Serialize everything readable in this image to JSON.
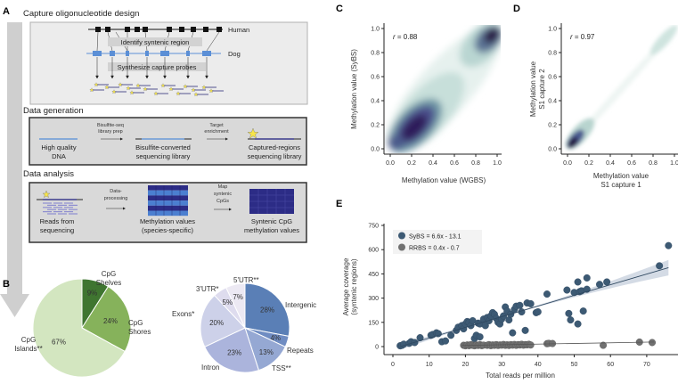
{
  "panel_labels": {
    "a": "A",
    "b": "B",
    "c": "C",
    "d": "D",
    "e": "E"
  },
  "panel_a": {
    "section1": {
      "title": "Capture oligonucleotide design",
      "human": "Human",
      "dog": "Dog",
      "step1": "Identify syntenic region",
      "step2": "Synthesize capture probes"
    },
    "section2": {
      "title": "Data generation",
      "item1": [
        "High quality",
        "DNA"
      ],
      "arrow1": [
        "Bisulfite-seq",
        "library prep"
      ],
      "item2": [
        "Bisulfite-converted",
        "sequencing library"
      ],
      "arrow2": [
        "Target",
        "enrichment"
      ],
      "item3": [
        "Captured-regions",
        "sequencing library"
      ]
    },
    "section3": {
      "title": "Data analysis",
      "item1": [
        "Reads from",
        "sequencing"
      ],
      "arrow1": [
        "Data-",
        "processing"
      ],
      "item2": [
        "Methylation values",
        "(species-specific)"
      ],
      "arrow2": [
        "Map",
        "syntenic",
        "CpGs"
      ],
      "item3": [
        "Syntenic CpG",
        "methylation values"
      ]
    }
  },
  "chart_data": [
    {
      "id": "B-left",
      "type": "pie",
      "slices": [
        {
          "label": "CpG Shelves",
          "label_lines": [
            "CpG",
            "Shelves"
          ],
          "value": 9,
          "text": "9%",
          "color": "#3f7530"
        },
        {
          "label": "CpG Shores",
          "label_lines": [
            "CpG",
            "Shores"
          ],
          "value": 24,
          "text": "24%",
          "color": "#86b25b"
        },
        {
          "label": "CpG Islands**",
          "label_lines": [
            "CpG",
            "Islands**"
          ],
          "value": 67,
          "text": "67%",
          "color": "#d3e6c0"
        }
      ]
    },
    {
      "id": "B-right",
      "type": "pie",
      "slices": [
        {
          "label": "Intergenic",
          "value": 28,
          "text": "28%",
          "color": "#5a7fb6"
        },
        {
          "label": "Repeats",
          "value": 4,
          "text": "4%",
          "color": "#6f8cc2"
        },
        {
          "label": "TSS**",
          "value": 13,
          "text": "13%",
          "color": "#95a8d3"
        },
        {
          "label": "Intron",
          "value": 23,
          "text": "23%",
          "color": "#abb4dc"
        },
        {
          "label": "Exons*",
          "value": 20,
          "text": "20%",
          "color": "#cdd1e9"
        },
        {
          "label": "3'UTR*",
          "value": 5,
          "text": "5%",
          "color": "#dedcee"
        },
        {
          "label": "5'UTR**",
          "value": 7,
          "text": "7%",
          "color": "#ece9f3"
        }
      ]
    },
    {
      "id": "C",
      "type": "heatmap",
      "subtype": "density scatter",
      "annotation": "r = 0.88",
      "r_symbol": "r",
      "r_value": "= 0.88",
      "xlabel": "Methylation value (WGBS)",
      "ylabel": "Methylation value (SyBS)",
      "xlim": [
        0,
        1
      ],
      "ylim": [
        0,
        1
      ],
      "xticks": [
        "0.0",
        "0.2",
        "0.4",
        "0.6",
        "0.8",
        "1.0"
      ],
      "yticks": [
        "0.0",
        "0.2",
        "0.4",
        "0.6",
        "0.8",
        "1.0"
      ],
      "density_peaks": [
        {
          "x": 0.2,
          "y": 0.2
        },
        {
          "x": 0.93,
          "y": 0.93
        }
      ]
    },
    {
      "id": "D",
      "type": "heatmap",
      "subtype": "density scatter",
      "annotation": "r = 0.97",
      "r_symbol": "r",
      "r_value": "= 0.97",
      "xlabel": [
        "Methylation value",
        "S1 capture 1"
      ],
      "ylabel": [
        "Methylation value",
        "S1 capture 2"
      ],
      "xlim": [
        0,
        1
      ],
      "ylim": [
        0,
        1
      ],
      "xticks": [
        "0.0",
        "0.2",
        "0.4",
        "0.6",
        "0.8",
        "1.0"
      ],
      "yticks": [
        "0.0",
        "0.2",
        "0.4",
        "0.6",
        "0.8",
        "1.0"
      ],
      "density_peaks": [
        {
          "x": 0.05,
          "y": 0.05
        },
        {
          "x": 0.95,
          "y": 0.95
        }
      ]
    },
    {
      "id": "E",
      "type": "scatter",
      "xlabel": "Total reads per million",
      "ylabel": [
        "Average coverage",
        "(syntenic regions)"
      ],
      "xlim": [
        0,
        77
      ],
      "ylim": [
        0,
        750
      ],
      "xticks": [
        "0",
        "10",
        "20",
        "30",
        "40",
        "50",
        "60",
        "70"
      ],
      "yticks": [
        "0",
        "150",
        "300",
        "450",
        "600",
        "750"
      ],
      "legend_position": "top-left",
      "series": [
        {
          "name": "SyBS = 6.6x - 13.1",
          "color": "#3d5a74",
          "fit": {
            "slope": 6.6,
            "intercept": -13.1
          },
          "points": [
            [
              2,
              5
            ],
            [
              2.5,
              8
            ],
            [
              3,
              15
            ],
            [
              4.5,
              20
            ],
            [
              5,
              30
            ],
            [
              6,
              25
            ],
            [
              7.5,
              55
            ],
            [
              10.5,
              70
            ],
            [
              11,
              75
            ],
            [
              12,
              85
            ],
            [
              12.5,
              80
            ],
            [
              13.5,
              30
            ],
            [
              14.5,
              35
            ],
            [
              16,
              70
            ],
            [
              17.5,
              100
            ],
            [
              18,
              120
            ],
            [
              19,
              130
            ],
            [
              19.5,
              110
            ],
            [
              20,
              140
            ],
            [
              20.5,
              155
            ],
            [
              21,
              150
            ],
            [
              21.5,
              130
            ],
            [
              22,
              160
            ],
            [
              22.5,
              50
            ],
            [
              23,
              70
            ],
            [
              23.5,
              145
            ],
            [
              24,
              60
            ],
            [
              24,
              140
            ],
            [
              25,
              170
            ],
            [
              25.5,
              130
            ],
            [
              26,
              180
            ],
            [
              26.5,
              160
            ],
            [
              27,
              190
            ],
            [
              27.5,
              210
            ],
            [
              28,
              200
            ],
            [
              28.5,
              175
            ],
            [
              29,
              150
            ],
            [
              29.5,
              140
            ],
            [
              30,
              170
            ],
            [
              30.5,
              190
            ],
            [
              31,
              245
            ],
            [
              31.5,
              220
            ],
            [
              32,
              165
            ],
            [
              32.5,
              200
            ],
            [
              33,
              85
            ],
            [
              33.5,
              230
            ],
            [
              34,
              250
            ],
            [
              35,
              255
            ],
            [
              35.5,
              215
            ],
            [
              36.5,
              100
            ],
            [
              37,
              270
            ],
            [
              38,
              265
            ],
            [
              39.5,
              210
            ],
            [
              40,
              215
            ],
            [
              42.5,
              325
            ],
            [
              48,
              350
            ],
            [
              48.5,
              205
            ],
            [
              49,
              165
            ],
            [
              50,
              335
            ],
            [
              51,
              400
            ],
            [
              51,
              140
            ],
            [
              51.5,
              340
            ],
            [
              52,
              345
            ],
            [
              52.5,
              220
            ],
            [
              53.5,
              425
            ],
            [
              53.5,
              355
            ],
            [
              57,
              385
            ],
            [
              59,
              400
            ],
            [
              73.5,
              500
            ],
            [
              76,
              625
            ]
          ]
        },
        {
          "name": "RRBS = 0.4x - 0.7",
          "color": "#707070",
          "fit": {
            "slope": 0.4,
            "intercept": -0.7
          },
          "points": [
            [
              19.5,
              8
            ],
            [
              20,
              5
            ],
            [
              20.5,
              10
            ],
            [
              21,
              6
            ],
            [
              21.5,
              12
            ],
            [
              22,
              8
            ],
            [
              22.5,
              5
            ],
            [
              23,
              10
            ],
            [
              23.5,
              7
            ],
            [
              24,
              12
            ],
            [
              24.5,
              6
            ],
            [
              25,
              9
            ],
            [
              26,
              8
            ],
            [
              26.5,
              12
            ],
            [
              27,
              6
            ],
            [
              27.5,
              10
            ],
            [
              28,
              8
            ],
            [
              28.5,
              12
            ],
            [
              29,
              7
            ],
            [
              29.5,
              10
            ],
            [
              30,
              9
            ],
            [
              30.5,
              13
            ],
            [
              31,
              8
            ],
            [
              31.5,
              11
            ],
            [
              32,
              7
            ],
            [
              32.5,
              12
            ],
            [
              33,
              9
            ],
            [
              33.5,
              13
            ],
            [
              34,
              8
            ],
            [
              34.5,
              12
            ],
            [
              35,
              10
            ],
            [
              35.5,
              14
            ],
            [
              36,
              9
            ],
            [
              36.5,
              12
            ],
            [
              37,
              11
            ],
            [
              37.5,
              14
            ],
            [
              38,
              10
            ],
            [
              42.5,
              18
            ],
            [
              43,
              20
            ],
            [
              44,
              19
            ],
            [
              58,
              8
            ],
            [
              68,
              28
            ],
            [
              71.5,
              25
            ]
          ]
        }
      ]
    }
  ]
}
